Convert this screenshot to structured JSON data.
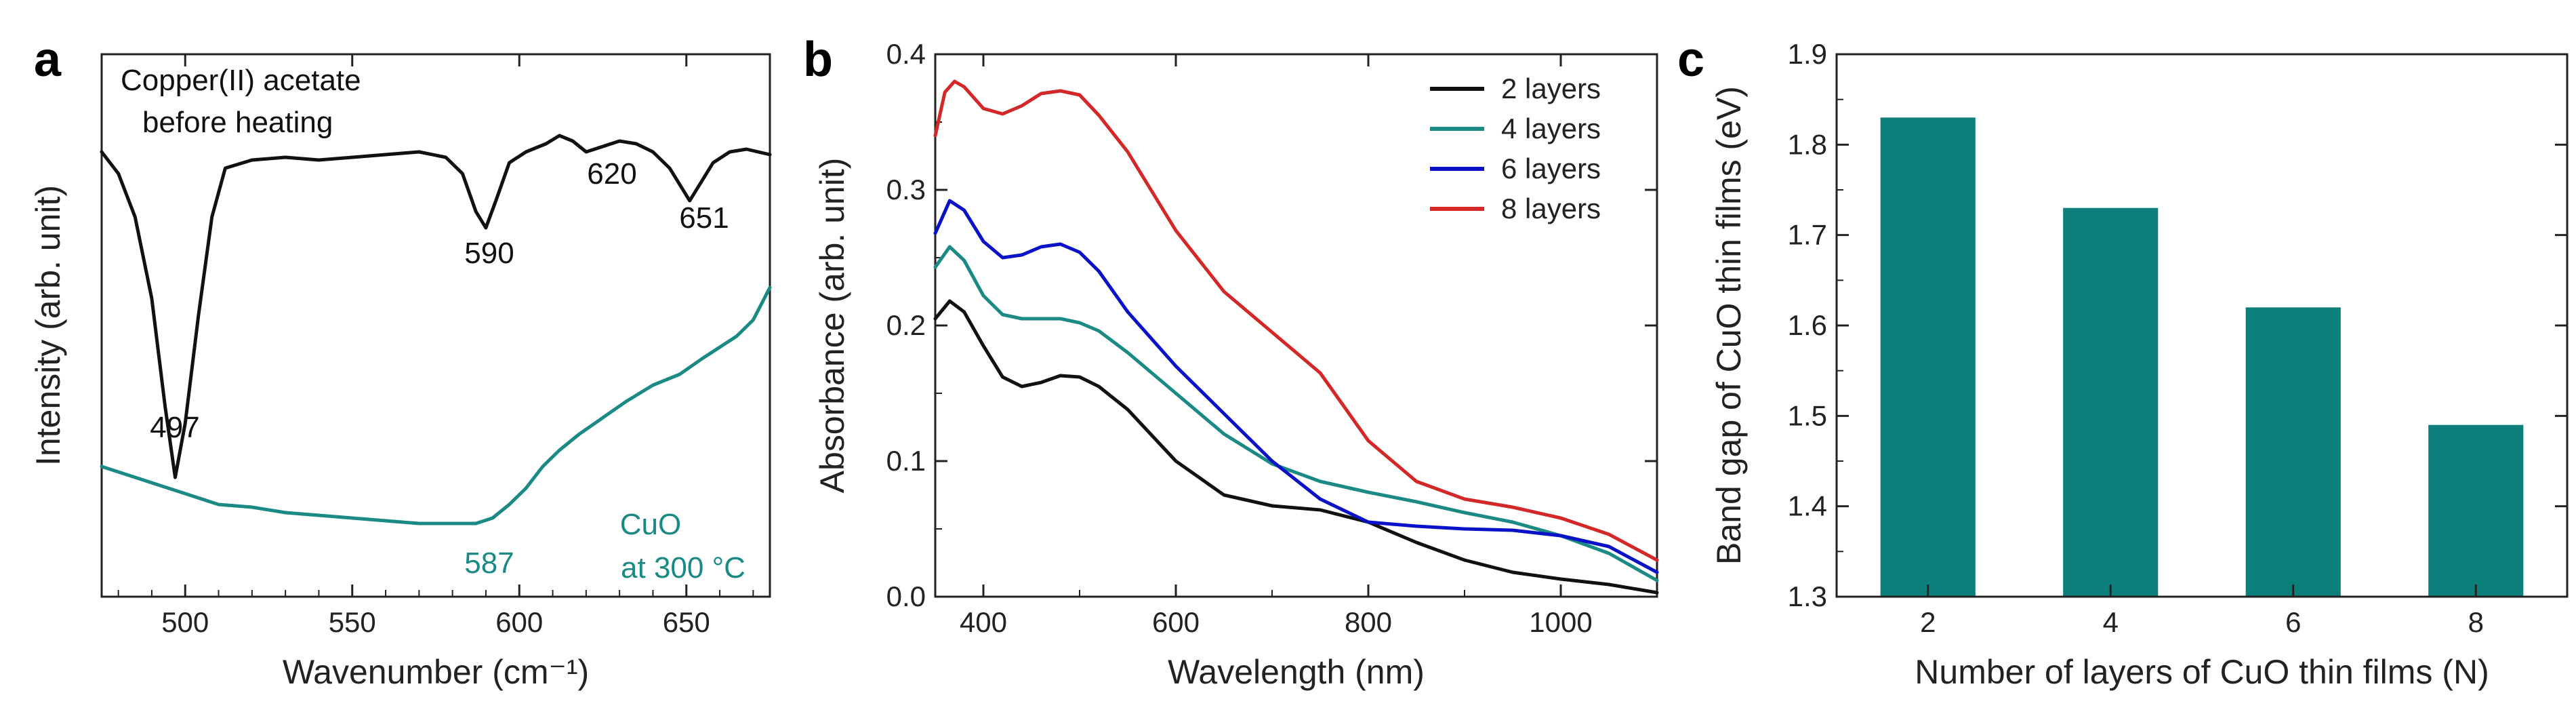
{
  "figure": {
    "colors": {
      "black": "#111111",
      "teal": "#1b8a85",
      "blue": "#0a12c8",
      "red": "#d42828",
      "bar": "#0c7f7a"
    }
  },
  "chart_data": [
    {
      "panel": "a",
      "type": "line",
      "title": "",
      "xlabel": "Wavenumber (cm⁻¹)",
      "ylabel": "Intensity (arb. unit)",
      "xlim": [
        475,
        675
      ],
      "ylim": [
        0,
        100
      ],
      "xticks": [
        500,
        550,
        600,
        650
      ],
      "yticks": [],
      "series": [
        {
          "name": "Copper(II) acetate before heating",
          "color": "#111111",
          "x": [
            475,
            480,
            485,
            490,
            494,
            497,
            500,
            504,
            508,
            512,
            520,
            530,
            540,
            550,
            560,
            570,
            578,
            583,
            587,
            590,
            593,
            597,
            602,
            608,
            612,
            616,
            620,
            625,
            630,
            635,
            640,
            645,
            649,
            651,
            654,
            658,
            663,
            668,
            675
          ],
          "y": [
            82,
            78,
            70,
            55,
            35,
            22,
            32,
            52,
            70,
            79,
            80.5,
            81,
            80.5,
            81,
            81.5,
            82,
            81,
            78,
            71,
            68,
            73,
            80,
            82,
            83.5,
            85,
            84,
            82,
            83,
            84,
            83.5,
            82,
            79,
            75,
            73,
            76,
            80,
            82,
            82.5,
            81.5
          ]
        },
        {
          "name": "CuO at 300 °C",
          "color": "#1b8a85",
          "x": [
            475,
            480,
            485,
            490,
            495,
            500,
            505,
            510,
            520,
            530,
            540,
            550,
            560,
            570,
            580,
            587,
            592,
            597,
            602,
            607,
            612,
            618,
            625,
            632,
            640,
            648,
            655,
            660,
            665,
            670,
            675
          ],
          "y": [
            24,
            23,
            22,
            21,
            20,
            19,
            18,
            17,
            16.5,
            15.5,
            15,
            14.5,
            14,
            13.5,
            13.5,
            13.5,
            14.5,
            17,
            20,
            24,
            27,
            30,
            33,
            36,
            39,
            41,
            44,
            46,
            48,
            51,
            57
          ]
        }
      ],
      "annotations": [
        {
          "text": "Copper(II) acetate",
          "color": "#111111"
        },
        {
          "text": "before heating",
          "color": "#111111"
        },
        {
          "text": "497",
          "color": "#111111"
        },
        {
          "text": "590",
          "color": "#111111"
        },
        {
          "text": "620",
          "color": "#111111"
        },
        {
          "text": "651",
          "color": "#111111"
        },
        {
          "text": "587",
          "color": "#1b8a85"
        },
        {
          "text": "CuO",
          "color": "#1b8a85"
        },
        {
          "text": "at 300 °C",
          "color": "#1b8a85"
        }
      ]
    },
    {
      "panel": "b",
      "type": "line",
      "title": "",
      "xlabel": "Wavelength (nm)",
      "ylabel": "Absorbance (arb. unit)",
      "xlim": [
        350,
        1100
      ],
      "ylim": [
        0,
        0.4
      ],
      "xticks": [
        400,
        600,
        800,
        1000
      ],
      "yticks": [
        0.0,
        0.1,
        0.2,
        0.3,
        0.4
      ],
      "ytick_labels": [
        "0.0",
        "0.1",
        "0.2",
        "0.3",
        "0.4"
      ],
      "legend_position": "top-right",
      "series": [
        {
          "name": "2 layers",
          "color": "#111111",
          "x": [
            350,
            365,
            380,
            400,
            420,
            440,
            460,
            480,
            500,
            520,
            550,
            600,
            650,
            700,
            750,
            800,
            850,
            900,
            950,
            1000,
            1050,
            1100
          ],
          "y": [
            0.205,
            0.218,
            0.21,
            0.185,
            0.162,
            0.155,
            0.158,
            0.163,
            0.162,
            0.155,
            0.138,
            0.1,
            0.075,
            0.067,
            0.064,
            0.055,
            0.04,
            0.027,
            0.018,
            0.013,
            0.009,
            0.003
          ]
        },
        {
          "name": "4 layers",
          "color": "#1b8a85",
          "x": [
            350,
            365,
            380,
            400,
            420,
            440,
            460,
            480,
            500,
            520,
            550,
            600,
            650,
            700,
            750,
            800,
            850,
            900,
            950,
            1000,
            1050,
            1100
          ],
          "y": [
            0.243,
            0.258,
            0.248,
            0.222,
            0.208,
            0.205,
            0.205,
            0.205,
            0.202,
            0.196,
            0.18,
            0.15,
            0.12,
            0.098,
            0.085,
            0.077,
            0.07,
            0.062,
            0.055,
            0.045,
            0.032,
            0.012
          ]
        },
        {
          "name": "6 layers",
          "color": "#0a12c8",
          "x": [
            350,
            365,
            380,
            400,
            420,
            440,
            460,
            480,
            500,
            520,
            550,
            600,
            650,
            700,
            750,
            800,
            850,
            900,
            950,
            1000,
            1050,
            1100
          ],
          "y": [
            0.268,
            0.292,
            0.285,
            0.262,
            0.25,
            0.252,
            0.258,
            0.26,
            0.254,
            0.24,
            0.21,
            0.17,
            0.135,
            0.1,
            0.072,
            0.055,
            0.052,
            0.05,
            0.049,
            0.045,
            0.037,
            0.018
          ]
        },
        {
          "name": "8 layers",
          "color": "#d42828",
          "x": [
            350,
            360,
            370,
            380,
            400,
            420,
            440,
            460,
            480,
            500,
            520,
            550,
            600,
            650,
            700,
            750,
            800,
            850,
            900,
            950,
            1000,
            1050,
            1100
          ],
          "y": [
            0.34,
            0.372,
            0.38,
            0.376,
            0.36,
            0.356,
            0.362,
            0.371,
            0.373,
            0.37,
            0.355,
            0.328,
            0.27,
            0.225,
            0.195,
            0.165,
            0.115,
            0.085,
            0.072,
            0.066,
            0.058,
            0.046,
            0.027
          ]
        }
      ]
    },
    {
      "panel": "c",
      "type": "bar",
      "title": "",
      "xlabel": "Number of layers of CuO thin films (N)",
      "ylabel": "Band gap of CuO thin films (eV)",
      "categories": [
        "2",
        "4",
        "6",
        "8"
      ],
      "values": [
        1.83,
        1.73,
        1.62,
        1.49
      ],
      "ylim": [
        1.3,
        1.9
      ],
      "yticks": [
        1.3,
        1.4,
        1.5,
        1.6,
        1.7,
        1.8,
        1.9
      ],
      "ytick_labels": [
        "1.3",
        "1.4",
        "1.5",
        "1.6",
        "1.7",
        "1.8",
        "1.9"
      ],
      "color": "#0c7f7a"
    }
  ]
}
